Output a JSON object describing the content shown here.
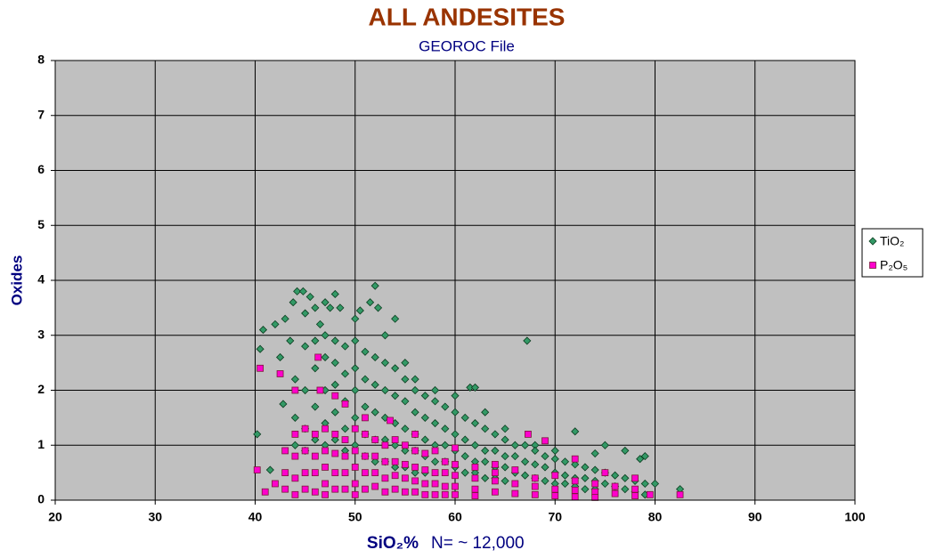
{
  "chart_data": {
    "type": "scatter",
    "title": "ALL ANDESITES",
    "subtitle": "GEOROC File",
    "xlabel": "SiO₂%",
    "annotation": "N= ~ 12,000",
    "ylabel": "Oxides",
    "xlim": [
      20,
      100
    ],
    "xticks": [
      20,
      30,
      40,
      50,
      60,
      70,
      80,
      90,
      100
    ],
    "ylim": [
      0,
      8
    ],
    "yticks": [
      0,
      1,
      2,
      3,
      4,
      5,
      6,
      7,
      8
    ],
    "grid": true,
    "legend": "right",
    "series": [
      {
        "name": "TiO₂",
        "color": "#339966",
        "marker": "diamond",
        "x": [
          40.2,
          40.5,
          40.8,
          41.5,
          42,
          42.5,
          42.8,
          43,
          43.5,
          43.8,
          44.2,
          44.8,
          45,
          45.5,
          46,
          46.5,
          47,
          47.5,
          48,
          48.5,
          50,
          50.5,
          51.5,
          52,
          52.3,
          53,
          54,
          55,
          56,
          58,
          60,
          61.5,
          62,
          63,
          65,
          67.2,
          68,
          70,
          72,
          74,
          75,
          77,
          78.5,
          79,
          80,
          82.5,
          44,
          44,
          44,
          45,
          45,
          45,
          45,
          46,
          46,
          46,
          46,
          47,
          47,
          47,
          47,
          47,
          48,
          48,
          48,
          48,
          48,
          49,
          49,
          49,
          49,
          49,
          50,
          50,
          50,
          50,
          50,
          51,
          51,
          51,
          51,
          51,
          52,
          52,
          52,
          52,
          52,
          53,
          53,
          53,
          53,
          53,
          54,
          54,
          54,
          54,
          54,
          55,
          55,
          55,
          55,
          55,
          56,
          56,
          56,
          56,
          56,
          57,
          57,
          57,
          57,
          57,
          58,
          58,
          58,
          58,
          59,
          59,
          59,
          59,
          60,
          60,
          60,
          60,
          61,
          61,
          61,
          61,
          62,
          62,
          62,
          62,
          63,
          63,
          63,
          63,
          64,
          64,
          64,
          64,
          65,
          65,
          65,
          65,
          66,
          66,
          66,
          67,
          67,
          67,
          68,
          68,
          68,
          69,
          69,
          69,
          70,
          70,
          70,
          71,
          71,
          71,
          72,
          72,
          72,
          73,
          73,
          73,
          74,
          74,
          74,
          75,
          75,
          76,
          76,
          77,
          77,
          78,
          78,
          79,
          79
        ],
        "values": [
          1.2,
          2.75,
          3.1,
          0.55,
          3.2,
          2.6,
          1.75,
          3.3,
          2.9,
          3.6,
          3.8,
          3.8,
          3.4,
          3.7,
          3.5,
          3.2,
          3.6,
          3.5,
          3.75,
          3.5,
          3.3,
          3.45,
          3.6,
          3.9,
          3.5,
          3.0,
          3.3,
          2.5,
          2.2,
          2.0,
          1.9,
          2.05,
          2.05,
          1.6,
          1.3,
          2.9,
          1.0,
          0.9,
          1.25,
          0.85,
          1.0,
          0.9,
          0.75,
          0.8,
          0.3,
          0.2,
          1.5,
          2.2,
          1.0,
          2.8,
          2.0,
          1.3,
          0.9,
          2.9,
          2.4,
          1.7,
          1.1,
          3.0,
          2.6,
          2.0,
          1.4,
          1.0,
          2.9,
          2.5,
          2.1,
          1.6,
          1.1,
          2.8,
          2.3,
          1.8,
          1.3,
          0.9,
          2.9,
          2.4,
          2.0,
          1.5,
          1.0,
          2.7,
          2.2,
          1.7,
          1.2,
          0.8,
          2.6,
          2.1,
          1.6,
          1.1,
          0.7,
          2.5,
          2.0,
          1.5,
          1.1,
          0.7,
          2.4,
          1.9,
          1.4,
          1.0,
          0.6,
          2.2,
          1.8,
          1.3,
          0.9,
          0.6,
          2.0,
          1.6,
          1.2,
          0.9,
          0.5,
          1.9,
          1.5,
          1.1,
          0.8,
          0.5,
          1.8,
          1.4,
          1.0,
          0.7,
          1.7,
          1.3,
          1.0,
          0.7,
          1.6,
          1.2,
          0.9,
          0.6,
          1.5,
          1.1,
          0.8,
          0.5,
          1.4,
          1.0,
          0.7,
          0.5,
          1.3,
          0.9,
          0.7,
          0.4,
          1.2,
          0.9,
          0.6,
          0.4,
          1.1,
          0.8,
          0.6,
          0.35,
          1.0,
          0.8,
          0.5,
          1.0,
          0.7,
          0.45,
          0.9,
          0.65,
          0.4,
          0.8,
          0.6,
          0.35,
          0.75,
          0.5,
          0.3,
          0.7,
          0.45,
          0.3,
          0.65,
          0.4,
          0.25,
          0.6,
          0.4,
          0.2,
          0.55,
          0.35,
          0.2,
          0.5,
          0.3,
          0.45,
          0.25,
          0.4,
          0.2,
          0.35,
          0.15,
          0.3,
          0.1
        ]
      },
      {
        "name": "P₂O₅",
        "color": "#ff00cc",
        "marker": "square",
        "x": [
          40.5,
          42.5,
          46.3,
          40.2,
          41,
          42,
          44,
          46.5,
          48,
          49,
          51,
          53.5,
          56,
          60,
          64,
          67.3,
          69,
          72,
          75,
          78,
          79.5,
          82.5,
          43,
          43,
          43,
          44,
          44,
          44,
          44,
          45,
          45,
          45,
          45,
          46,
          46,
          46,
          46,
          47,
          47,
          47,
          47,
          47,
          48,
          48,
          48,
          48,
          49,
          49,
          49,
          49,
          50,
          50,
          50,
          50,
          50,
          51,
          51,
          51,
          51,
          52,
          52,
          52,
          52,
          53,
          53,
          53,
          53,
          54,
          54,
          54,
          54,
          55,
          55,
          55,
          55,
          56,
          56,
          56,
          56,
          57,
          57,
          57,
          57,
          58,
          58,
          58,
          58,
          59,
          59,
          59,
          59,
          60,
          60,
          60,
          60,
          62,
          62,
          62,
          62,
          64,
          64,
          64,
          66,
          66,
          66,
          68,
          68,
          68,
          70,
          70,
          70,
          72,
          72,
          72,
          74,
          74,
          74,
          76,
          76,
          78,
          78
        ],
        "values": [
          2.4,
          2.3,
          2.6,
          0.55,
          0.15,
          0.3,
          2.0,
          2.0,
          1.9,
          1.75,
          1.5,
          1.45,
          1.2,
          0.95,
          0.65,
          1.2,
          1.08,
          0.75,
          0.5,
          0.4,
          0.1,
          0.1,
          0.9,
          0.5,
          0.2,
          1.2,
          0.8,
          0.4,
          0.1,
          1.3,
          0.9,
          0.5,
          0.2,
          1.2,
          0.8,
          0.5,
          0.15,
          1.3,
          0.9,
          0.6,
          0.3,
          0.1,
          1.2,
          0.85,
          0.5,
          0.2,
          1.1,
          0.8,
          0.5,
          0.2,
          1.3,
          0.9,
          0.6,
          0.3,
          0.1,
          1.2,
          0.8,
          0.5,
          0.2,
          1.1,
          0.8,
          0.5,
          0.25,
          1.0,
          0.7,
          0.4,
          0.15,
          1.1,
          0.7,
          0.45,
          0.2,
          1.0,
          0.65,
          0.4,
          0.15,
          0.9,
          0.6,
          0.35,
          0.15,
          0.85,
          0.55,
          0.3,
          0.1,
          0.9,
          0.5,
          0.3,
          0.1,
          0.7,
          0.5,
          0.25,
          0.1,
          0.65,
          0.45,
          0.25,
          0.1,
          0.6,
          0.4,
          0.2,
          0.08,
          0.5,
          0.35,
          0.15,
          0.55,
          0.3,
          0.12,
          0.4,
          0.25,
          0.1,
          0.45,
          0.2,
          0.08,
          0.35,
          0.18,
          0.06,
          0.3,
          0.15,
          0.05,
          0.25,
          0.12,
          0.2,
          0.08
        ]
      }
    ]
  }
}
